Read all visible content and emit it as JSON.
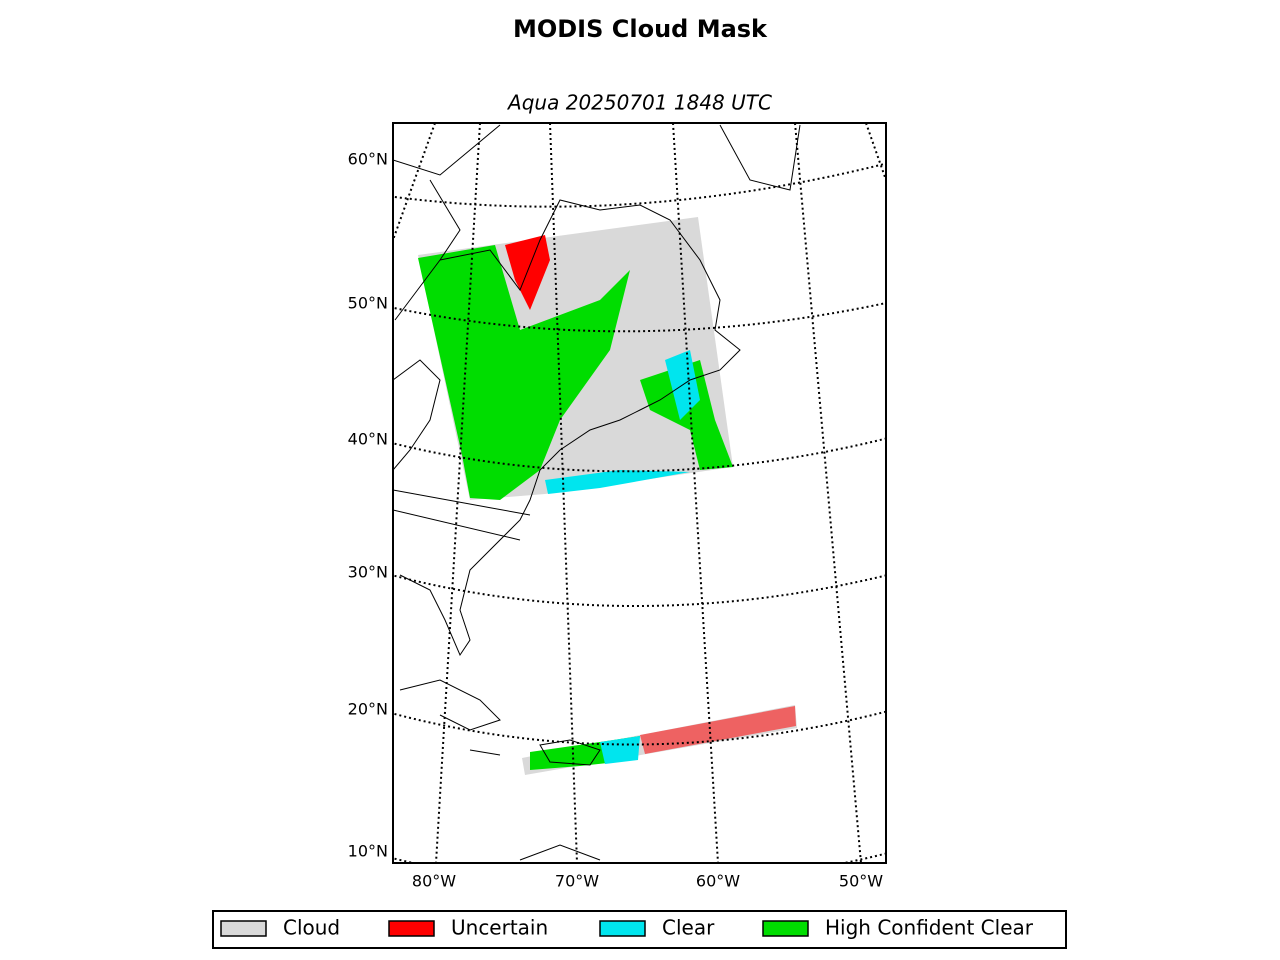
{
  "header": {
    "title": "MODIS Cloud Mask",
    "subtitle": "Aqua 20250701 1848 UTC"
  },
  "map": {
    "lat_labels": [
      "60°N",
      "50°N",
      "40°N",
      "30°N",
      "20°N",
      "10°N"
    ],
    "lon_labels": [
      "80°W",
      "70°W",
      "60°W",
      "50°W"
    ]
  },
  "legend": {
    "items": [
      {
        "name": "Cloud",
        "color": "#d9d9d9"
      },
      {
        "name": "Uncertain",
        "color": "#ff0000"
      },
      {
        "name": "Clear",
        "color": "#00e5ee"
      },
      {
        "name": "High Confident Clear",
        "color": "#00dd00"
      }
    ]
  }
}
